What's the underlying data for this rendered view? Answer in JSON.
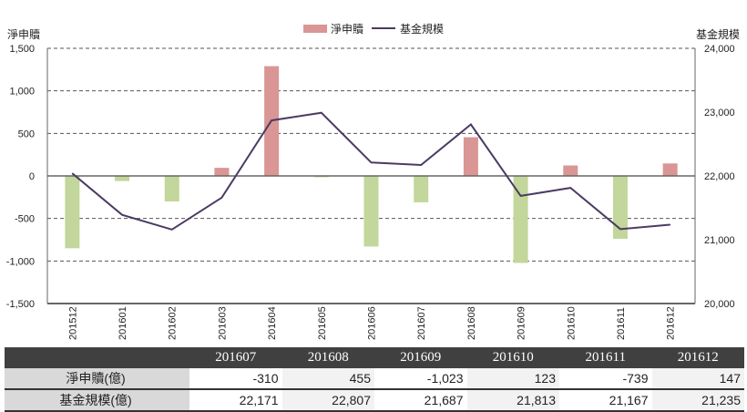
{
  "chart_data": {
    "type": "bar+line",
    "categories": [
      "201512",
      "201601",
      "201602",
      "201603",
      "201604",
      "201605",
      "201606",
      "201607",
      "201608",
      "201609",
      "201610",
      "201611",
      "201612"
    ],
    "series": [
      {
        "name": "淨申贖",
        "type": "bar",
        "axis": "left",
        "values": [
          -850,
          -60,
          -300,
          95,
          1290,
          -15,
          -830,
          -310,
          455,
          -1023,
          123,
          -739,
          147
        ]
      },
      {
        "name": "基金規模",
        "type": "line",
        "axis": "right",
        "values": [
          22040,
          21390,
          21160,
          21660,
          22870,
          22990,
          22210,
          22171,
          22807,
          21687,
          21813,
          21167,
          21235
        ]
      }
    ],
    "ylabel_left": "淨申贖",
    "ylabel_right": "基金規模",
    "ylim_left": [
      -1500,
      1500
    ],
    "yticks_left": [
      "1,500",
      "1,000",
      "500",
      "0",
      "-500",
      "-1,000",
      "-1,500"
    ],
    "ylim_right": [
      20000,
      24000
    ],
    "yticks_right": [
      "24,000",
      "23,000",
      "22,000",
      "21,000",
      "20,000"
    ],
    "legend": "top-center",
    "grid": "dashed horizontal",
    "colors": {
      "positive_bar": "#d99694",
      "negative_bar": "#c3d69b",
      "line": "#4b3b63"
    }
  },
  "table": {
    "headers": [
      "201607",
      "201608",
      "201609",
      "201610",
      "201611",
      "201612"
    ],
    "rows": [
      {
        "label": "淨申贖(億)",
        "values": [
          "-310",
          "455",
          "-1,023",
          "123",
          "-739",
          "147"
        ]
      },
      {
        "label": "基金規模(億)",
        "values": [
          "22,171",
          "22,807",
          "21,687",
          "21,813",
          "21,167",
          "21,235"
        ]
      }
    ]
  }
}
